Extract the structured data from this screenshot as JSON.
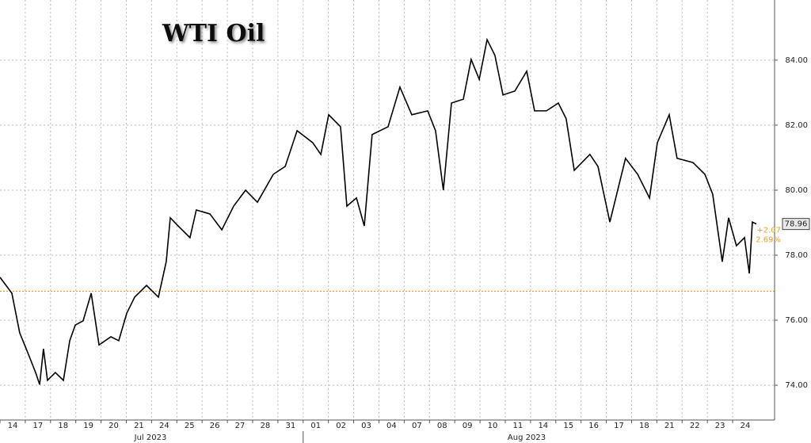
{
  "chart_data": {
    "type": "line",
    "title": "WTI Oil",
    "x": [
      0,
      0.47,
      0.78,
      1.1,
      1.41,
      1.57,
      1.72,
      1.88,
      2.19,
      2.51,
      2.76,
      2.98,
      3.29,
      3.61,
      3.92,
      4.39,
      4.7,
      5.02,
      5.33,
      5.8,
      6.27,
      6.58,
      6.74,
      7.05,
      7.52,
      7.77,
      8.31,
      8.78,
      9.25,
      9.72,
      10.19,
      10.82,
      11.29,
      11.76,
      12.38,
      12.7,
      13.01,
      13.48,
      13.73,
      14.11,
      14.42,
      14.73,
      15.36,
      15.83,
      16.3,
      16.93,
      17.24,
      17.55,
      17.87,
      18.34,
      18.65,
      18.97,
      19.28,
      19.59,
      19.91,
      20.38,
      20.85,
      21.16,
      21.63,
      22.1,
      22.41,
      22.73,
      23.35,
      23.67,
      24.14,
      24.45,
      24.76,
      25.24,
      25.71,
      26.02,
      26.49,
      26.8,
      27.43,
      27.9,
      28.21,
      28.59,
      28.84,
      29.15,
      29.47,
      29.66,
      29.78,
      29.94
    ],
    "series": [
      {
        "color": "#000000",
        "values": [
          77.32,
          76.83,
          75.61,
          75.0,
          74.39,
          74.02,
          75.12,
          74.15,
          74.39,
          74.15,
          75.37,
          75.85,
          75.98,
          76.83,
          75.24,
          75.49,
          75.37,
          76.22,
          76.71,
          77.07,
          76.71,
          77.8,
          79.15,
          78.9,
          78.54,
          79.39,
          79.27,
          78.78,
          79.51,
          80.0,
          79.63,
          80.49,
          80.73,
          81.83,
          81.46,
          81.1,
          82.32,
          81.95,
          79.51,
          79.76,
          78.9,
          81.71,
          81.95,
          83.17,
          82.32,
          82.44,
          81.83,
          80.0,
          82.68,
          82.8,
          84.02,
          83.41,
          84.63,
          84.15,
          82.93,
          83.05,
          83.66,
          82.44,
          82.44,
          82.68,
          82.2,
          80.61,
          81.1,
          80.73,
          79.02,
          80.0,
          80.98,
          80.49,
          79.76,
          81.46,
          82.32,
          80.98,
          80.85,
          80.49,
          79.88,
          77.8,
          79.15,
          78.29,
          78.54,
          77.44,
          79.02,
          78.96
        ]
      }
    ],
    "xlim": [
      0,
      30.66
    ],
    "xticks": [
      {
        "value": 0,
        "label": "14"
      },
      {
        "value": 1,
        "label": "17"
      },
      {
        "value": 2,
        "label": "18"
      },
      {
        "value": 3,
        "label": "19"
      },
      {
        "value": 4,
        "label": "20"
      },
      {
        "value": 5,
        "label": "21"
      },
      {
        "value": 6,
        "label": "24"
      },
      {
        "value": 7,
        "label": "25"
      },
      {
        "value": 8,
        "label": "26"
      },
      {
        "value": 9,
        "label": "27"
      },
      {
        "value": 10,
        "label": "28"
      },
      {
        "value": 11,
        "label": "31"
      },
      {
        "value": 12,
        "label": "01"
      },
      {
        "value": 13,
        "label": "02"
      },
      {
        "value": 14,
        "label": "03"
      },
      {
        "value": 15,
        "label": "04"
      },
      {
        "value": 16,
        "label": "07"
      },
      {
        "value": 17,
        "label": "08"
      },
      {
        "value": 18,
        "label": "09"
      },
      {
        "value": 19,
        "label": "10"
      },
      {
        "value": 20,
        "label": "11"
      },
      {
        "value": 21,
        "label": "14"
      },
      {
        "value": 22,
        "label": "15"
      },
      {
        "value": 23,
        "label": "16"
      },
      {
        "value": 24,
        "label": "17"
      },
      {
        "value": 25,
        "label": "18"
      },
      {
        "value": 26,
        "label": "21"
      },
      {
        "value": 27,
        "label": "22"
      },
      {
        "value": 28,
        "label": "23"
      },
      {
        "value": 29,
        "label": "24"
      }
    ],
    "month_labels": [
      "Jul 2023",
      "Aug 2023"
    ],
    "ylim": [
      72.93,
      85.85
    ],
    "yticks": [
      {
        "value": 74,
        "label": "74.00"
      },
      {
        "value": 76,
        "label": "76.00"
      },
      {
        "value": 78,
        "label": "78.00"
      },
      {
        "value": 80,
        "label": "80.00"
      },
      {
        "value": 82,
        "label": "82.00"
      },
      {
        "value": 84,
        "label": "84.00"
      }
    ],
    "grid": true,
    "reference_line": {
      "value": 76.89,
      "color": "#f0900a"
    },
    "last_price": {
      "value": 78.96,
      "label": "78.96"
    },
    "change_labels": [
      "+2.07",
      "2.69%"
    ]
  }
}
